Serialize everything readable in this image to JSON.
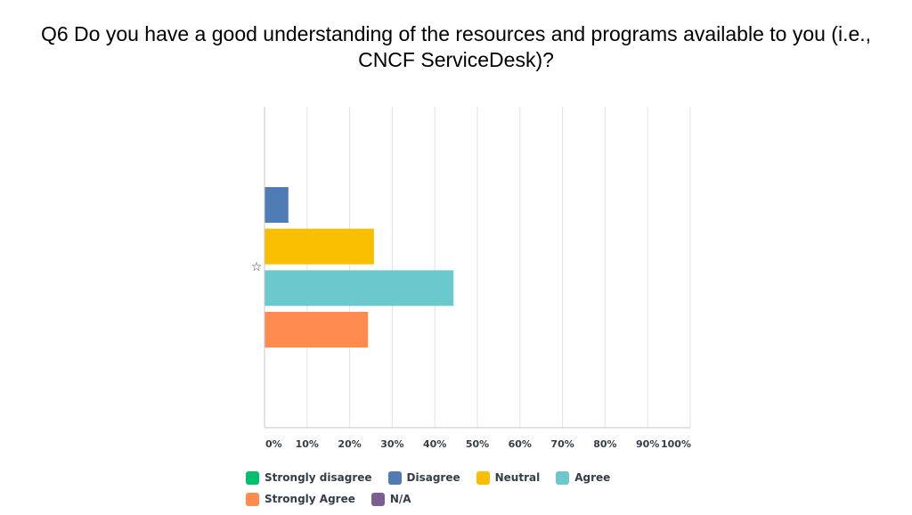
{
  "title_lines": [
    "Q6 Do you have a good understanding of the resources and programs available to you (i.e.,",
    "CNCF ServiceDesk)?"
  ],
  "marker_icon": "star-outline-icon",
  "chart_data": {
    "type": "bar",
    "orientation": "horizontal",
    "title": "Q6 Do you have a good understanding of the resources and programs available to you (i.e., CNCF ServiceDesk)?",
    "xlim": [
      0,
      100
    ],
    "x_ticks": [
      "0%",
      "10%",
      "20%",
      "30%",
      "40%",
      "50%",
      "60%",
      "70%",
      "80%",
      "90%",
      "100%"
    ],
    "grid": true,
    "legend_position": "bottom",
    "series": [
      {
        "name": "Strongly disagree",
        "value": 0,
        "color": "#00bf6f"
      },
      {
        "name": "Disagree",
        "value": 5.5,
        "color": "#507cb6"
      },
      {
        "name": "Neutral",
        "value": 25.6,
        "color": "#f9be00"
      },
      {
        "name": "Agree",
        "value": 44.3,
        "color": "#6bc8cd"
      },
      {
        "name": "Strongly Agree",
        "value": 24.2,
        "color": "#ff8b4f"
      },
      {
        "name": "N/A",
        "value": 0,
        "color": "#7d5e90"
      }
    ]
  }
}
